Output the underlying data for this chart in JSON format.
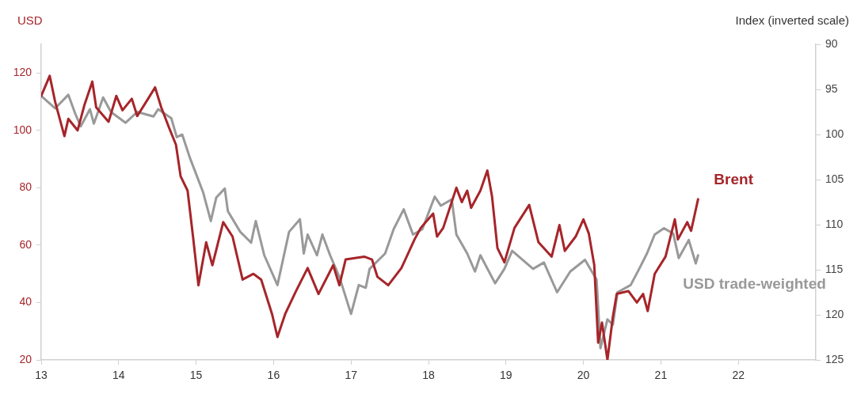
{
  "chart_data": {
    "type": "line",
    "ylabel": "USD",
    "y2label": "Index (inverted scale)",
    "xlim": [
      13,
      23
    ],
    "xticks": [
      13,
      14,
      15,
      16,
      17,
      18,
      19,
      20,
      21,
      22
    ],
    "ylim": [
      20,
      130
    ],
    "yticks": [
      20,
      40,
      60,
      80,
      100,
      120
    ],
    "y2lim": [
      125,
      90
    ],
    "y2ticks": [
      90,
      95,
      100,
      105,
      110,
      115,
      120,
      125
    ],
    "grid": false,
    "legend": false,
    "marker": "none",
    "line_style": "solid",
    "series": [
      {
        "name": "Brent",
        "color": "#a6252a",
        "x": [
          13.0,
          13.11,
          13.18,
          13.3,
          13.35,
          13.47,
          13.56,
          13.66,
          13.71,
          13.87,
          13.97,
          14.05,
          14.17,
          14.24,
          14.38,
          14.47,
          14.55,
          14.65,
          14.74,
          14.8,
          14.89,
          14.96,
          15.03,
          15.13,
          15.21,
          15.35,
          15.47,
          15.6,
          15.74,
          15.84,
          15.98,
          16.05,
          16.15,
          16.29,
          16.44,
          16.58,
          16.77,
          16.85,
          16.93,
          17.17,
          17.27,
          17.34,
          17.48,
          17.65,
          17.82,
          17.9,
          18.06,
          18.11,
          18.19,
          18.36,
          18.43,
          18.5,
          18.55,
          18.67,
          18.76,
          18.82,
          18.89,
          18.98,
          19.11,
          19.3,
          19.42,
          19.59,
          19.69,
          19.76,
          19.9,
          20.0,
          20.07,
          20.14,
          20.19,
          20.24,
          20.31,
          20.38,
          20.43,
          20.58,
          20.69,
          20.77,
          20.83,
          20.92,
          21.06,
          21.18,
          21.22,
          21.34,
          21.39,
          21.48
        ],
        "values": [
          112,
          119,
          110,
          98,
          104,
          100,
          109,
          117,
          108,
          103,
          112,
          107,
          111,
          105,
          111,
          115,
          108,
          101,
          95,
          84,
          79,
          63,
          46,
          61,
          53,
          68,
          63,
          48,
          50,
          48,
          36,
          28,
          36,
          44,
          52,
          43,
          53,
          46,
          55,
          56,
          55,
          49,
          46,
          52,
          62,
          66,
          71,
          63,
          66,
          80,
          75,
          79,
          73,
          79,
          86,
          77,
          59,
          54,
          66,
          74,
          61,
          56,
          67,
          58,
          63,
          69,
          64,
          53,
          26,
          33,
          20,
          35,
          43,
          44,
          40,
          43,
          37,
          50,
          56,
          69,
          62,
          68,
          65,
          76
        ]
      },
      {
        "name": "USD trade-weighted",
        "color": "#999999",
        "axis": "y2",
        "x": [
          13.01,
          13.18,
          13.35,
          13.44,
          13.51,
          13.63,
          13.68,
          13.8,
          13.9,
          14.09,
          14.24,
          14.45,
          14.51,
          14.68,
          14.75,
          14.82,
          14.92,
          15.09,
          15.19,
          15.26,
          15.37,
          15.41,
          15.57,
          15.71,
          15.77,
          15.88,
          16.05,
          16.2,
          16.34,
          16.39,
          16.44,
          16.56,
          16.63,
          16.73,
          16.85,
          17.0,
          17.1,
          17.19,
          17.24,
          17.44,
          17.55,
          17.68,
          17.8,
          17.92,
          18.08,
          18.16,
          18.3,
          18.36,
          18.5,
          18.6,
          18.67,
          18.86,
          18.98,
          19.08,
          19.35,
          19.49,
          19.66,
          19.83,
          20.02,
          20.17,
          20.22,
          20.31,
          20.38,
          20.44,
          20.61,
          20.72,
          20.82,
          20.92,
          21.04,
          21.16,
          21.23,
          21.36,
          21.45,
          21.48
        ],
        "values": [
          95.8,
          97.1,
          95.6,
          97.7,
          99.1,
          97.2,
          98.8,
          95.9,
          97.5,
          98.7,
          97.5,
          98,
          97.2,
          98.2,
          100.3,
          100,
          102.6,
          106.4,
          109.6,
          107,
          106,
          108.5,
          110.8,
          112,
          109.6,
          113.4,
          116.7,
          110.8,
          109.4,
          113.2,
          111.1,
          113.4,
          111.1,
          113.4,
          115.8,
          119.9,
          116.7,
          117,
          114.9,
          113.2,
          110.5,
          108.3,
          111.1,
          110.5,
          106.9,
          107.9,
          107.2,
          111.1,
          113.2,
          115.2,
          113.4,
          116.5,
          114.9,
          112.9,
          114.9,
          114.2,
          117.5,
          115.2,
          113.9,
          116.1,
          123.7,
          120.5,
          121.1,
          117.5,
          116.7,
          114.9,
          113.2,
          111.1,
          110.4,
          111,
          113.7,
          111.7,
          114.3,
          113.4
        ]
      }
    ]
  }
}
